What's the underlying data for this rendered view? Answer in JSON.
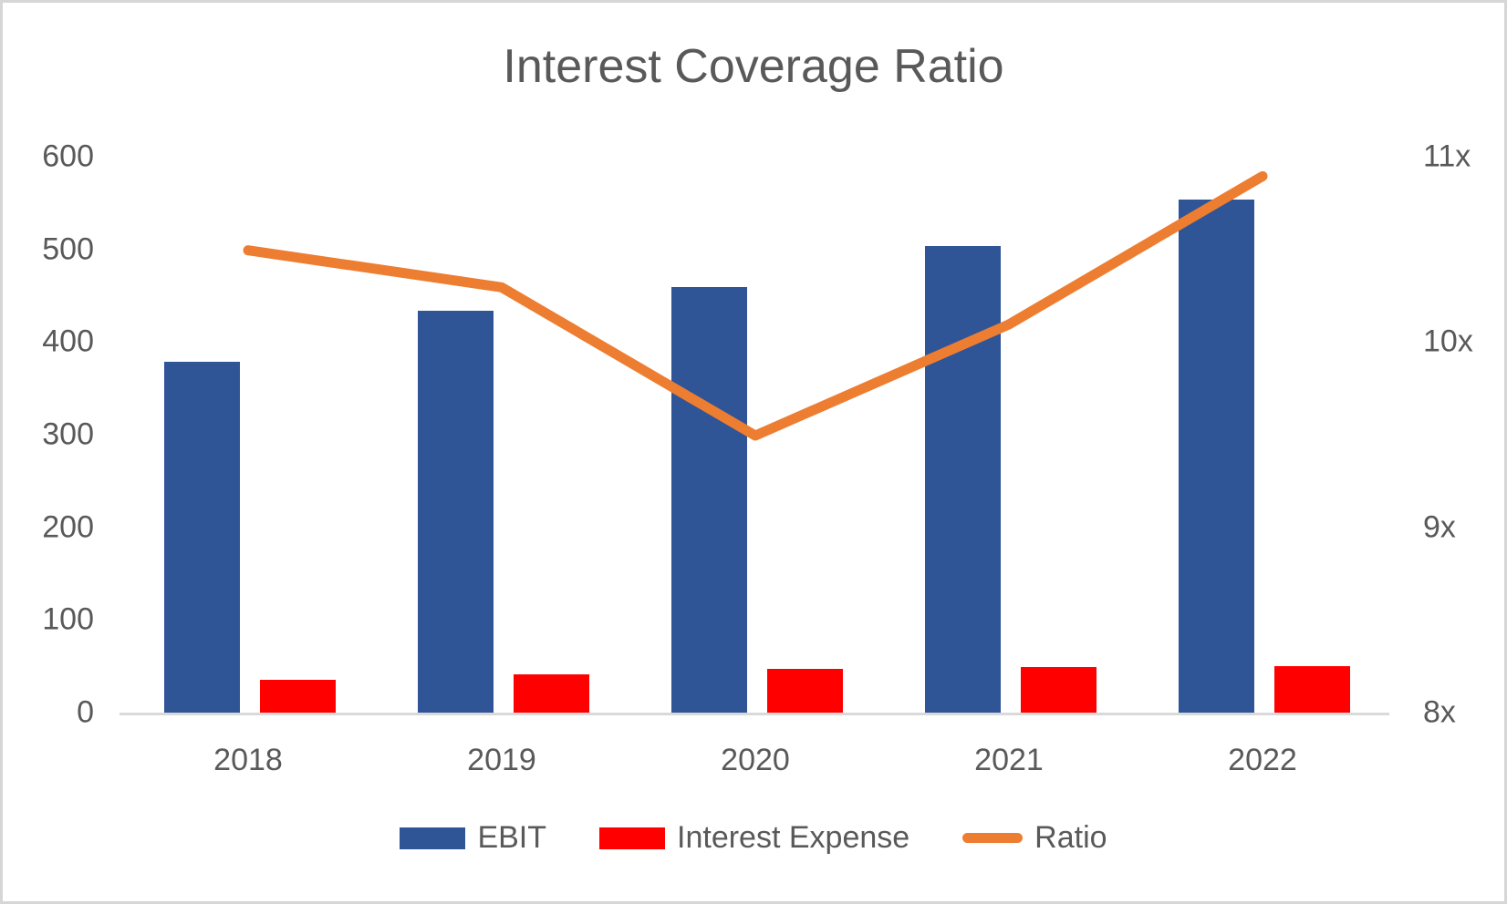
{
  "title": "Interest Coverage Ratio",
  "colors": {
    "ebit_bar": "#2F5597",
    "interest_bar": "#FF0000",
    "ratio_line": "#ED7D31",
    "text": "#595959",
    "axis_line": "#D9D9D9"
  },
  "chart_data": {
    "type": "bar",
    "subtype": "combo-clustered-bar-with-line",
    "title": "Interest Coverage Ratio",
    "categories": [
      "2018",
      "2019",
      "2020",
      "2021",
      "2022"
    ],
    "series": [
      {
        "name": "EBIT",
        "type": "bar",
        "axis": "left",
        "color": "#2F5597",
        "values": [
          380,
          435,
          460,
          505,
          555
        ]
      },
      {
        "name": "Interest Expense",
        "type": "bar",
        "axis": "left",
        "color": "#FF0000",
        "values": [
          36,
          42,
          48,
          50,
          51
        ]
      },
      {
        "name": "Ratio",
        "type": "line",
        "axis": "right",
        "color": "#ED7D31",
        "values": [
          10.5,
          10.3,
          9.5,
          10.1,
          10.9
        ]
      }
    ],
    "left_axis": {
      "min": 0,
      "max": 600,
      "step": 100,
      "tick_labels": [
        "0",
        "100",
        "200",
        "300",
        "400",
        "500",
        "600"
      ]
    },
    "right_axis": {
      "min": 8,
      "max": 11,
      "step": 1,
      "tick_labels": [
        "8x",
        "9x",
        "10x",
        "11x"
      ]
    },
    "legend": [
      "EBIT",
      "Interest Expense",
      "Ratio"
    ],
    "legend_position": "bottom",
    "grid": false,
    "xlabel": "",
    "ylabel": ""
  }
}
